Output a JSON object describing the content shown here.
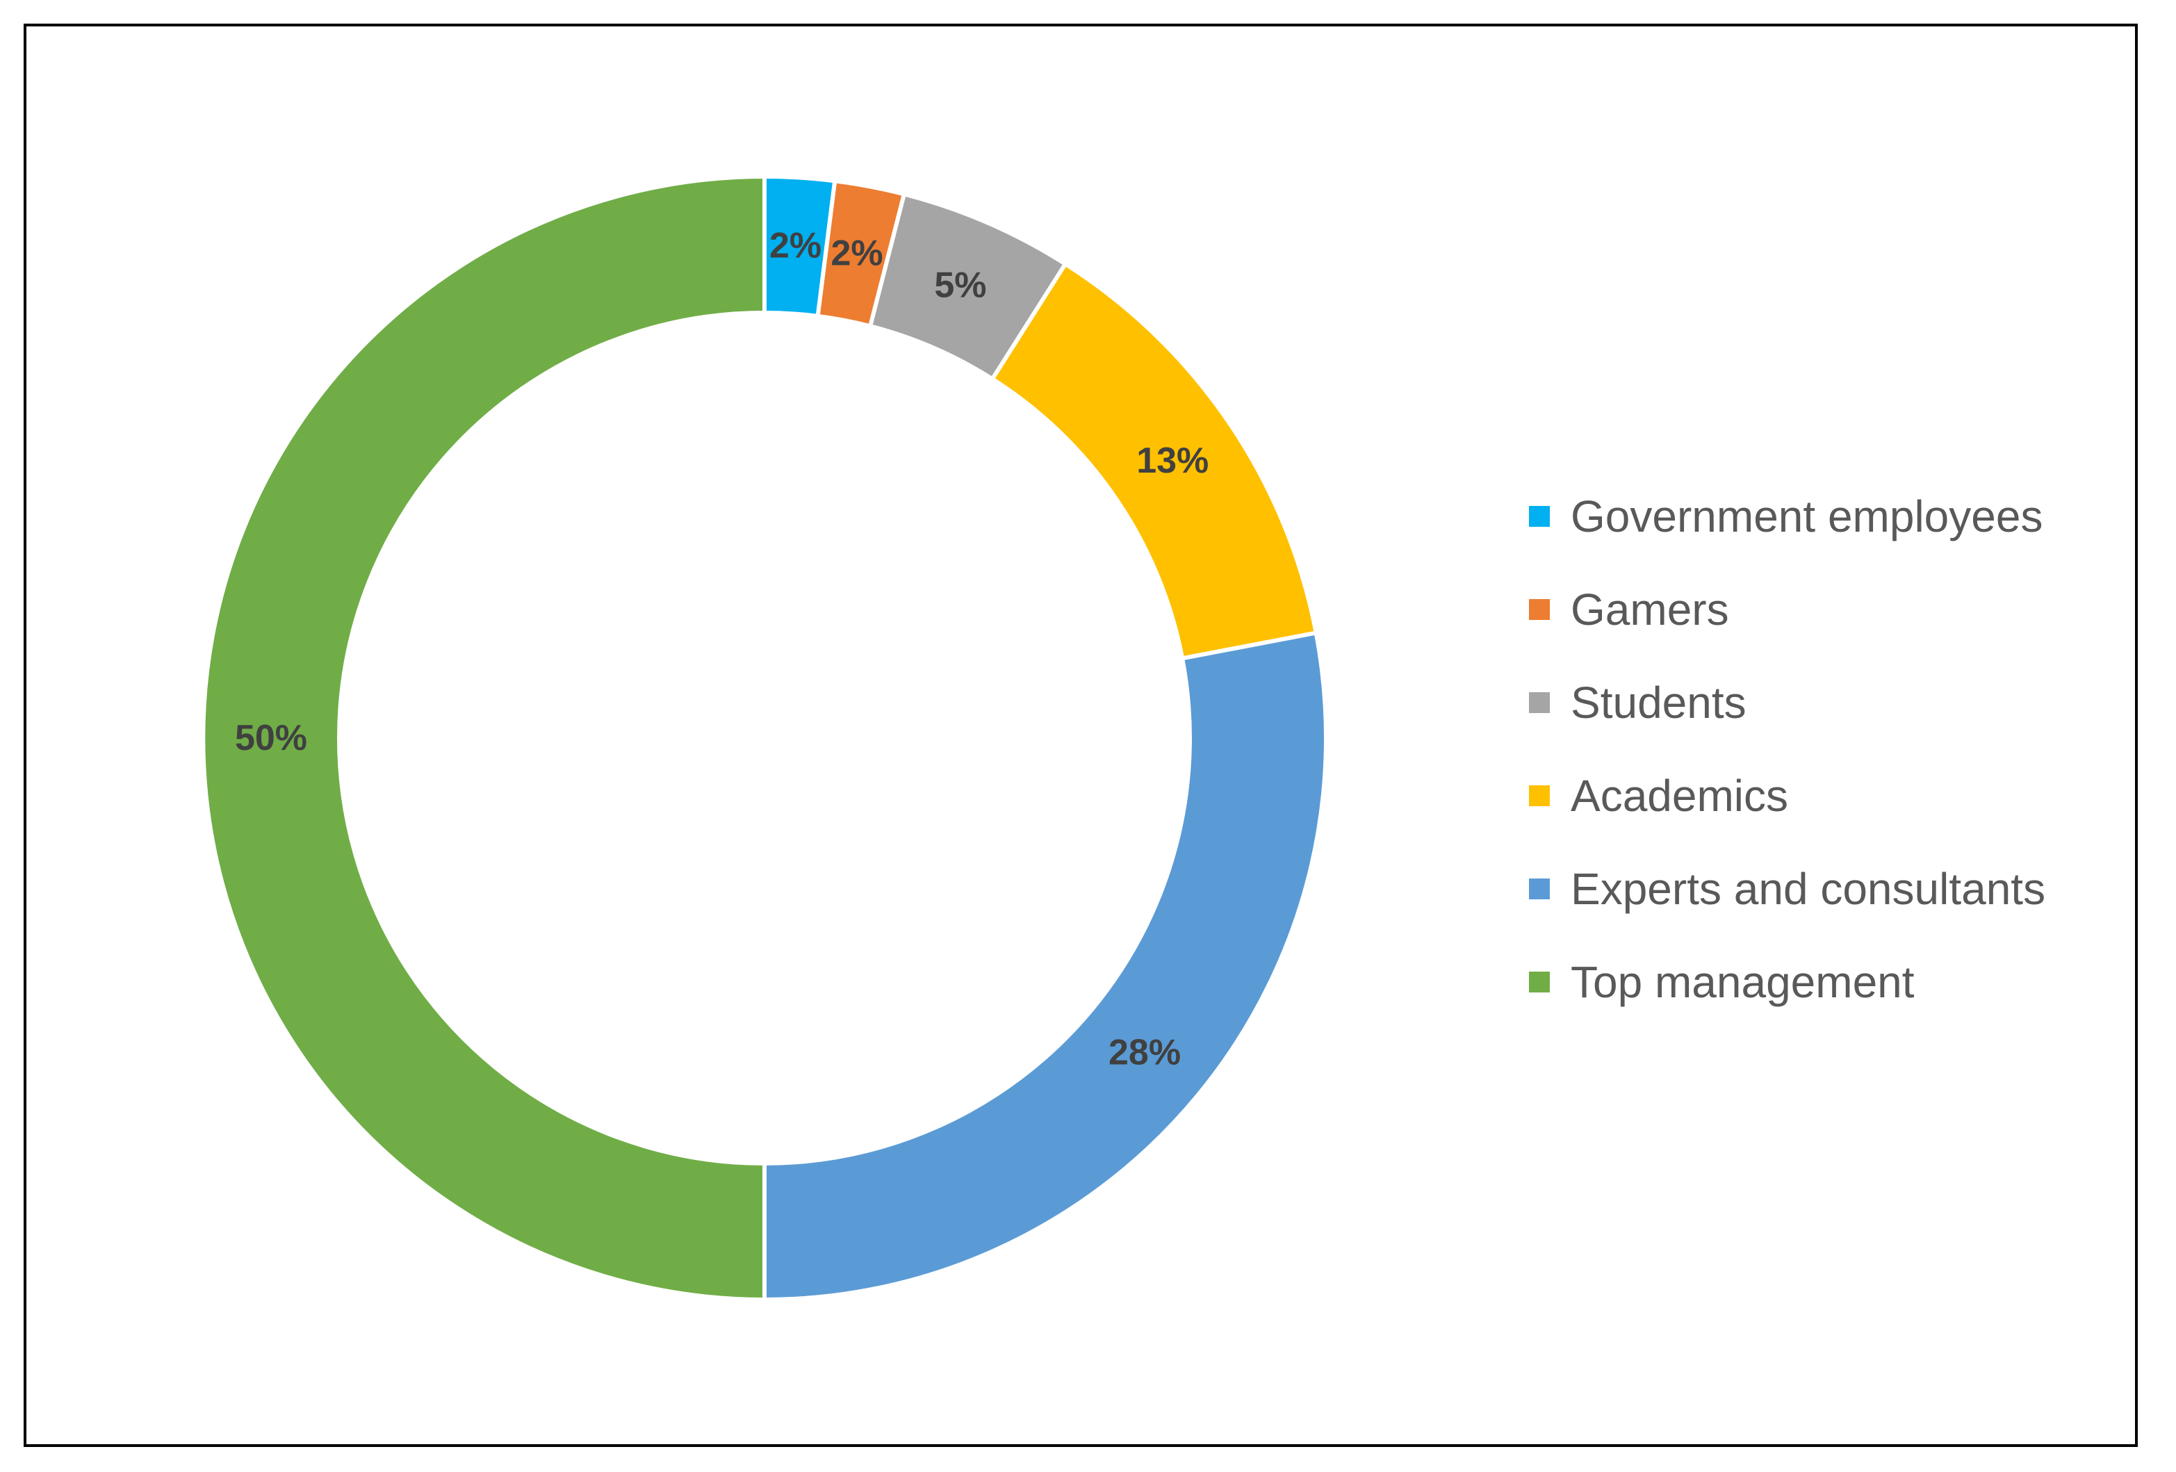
{
  "chart_data": {
    "type": "pie",
    "donut": true,
    "categories": [
      "Government employees",
      "Gamers",
      "Students",
      "Academics",
      "Experts and consultants",
      "Top management"
    ],
    "values": [
      2,
      2,
      5,
      13,
      28,
      50
    ],
    "data_labels": [
      "2%",
      "2%",
      "5%",
      "13%",
      "28%",
      "50%"
    ],
    "colors": [
      "#00b0f0",
      "#ed7d31",
      "#a5a5a5",
      "#ffc000",
      "#5b9bd5",
      "#70ad47"
    ],
    "legend_position": "right",
    "title": ""
  }
}
